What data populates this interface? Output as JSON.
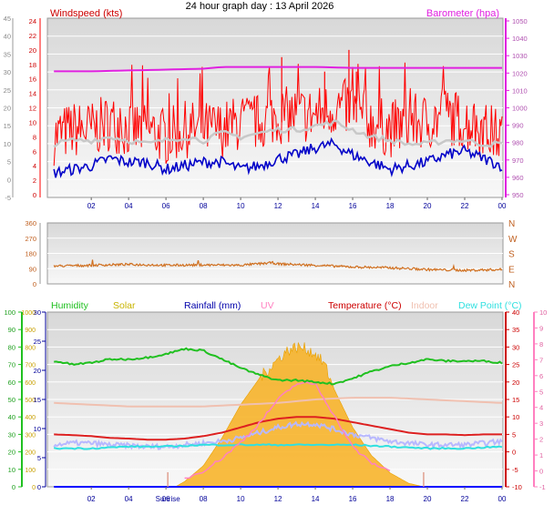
{
  "page": {
    "title": "24 hour graph day : 13 April 2026"
  },
  "colors": {
    "wind": "#ff0000",
    "gust_avg": "#c8c8c8",
    "wind_low": "#0000c8",
    "baro": "#e020e0",
    "dir": "#d07020",
    "humidity": "#20c020",
    "solar": "#f8b020",
    "rain": "#0000ff",
    "uv": "#ff80c0",
    "temperature": "#dd2020",
    "indoor": "#f0c0b0",
    "dewpoint": "#30e0e0",
    "apparent": "#b8b8ff",
    "panel_bg": "#e8e8e8",
    "grid": "#ffffff"
  },
  "chart_data": [
    {
      "type": "line",
      "title": "",
      "left_label": "Windspeed (kts)",
      "right_label": "Barometer (hpa)",
      "x_ticks": [
        "02",
        "04",
        "06",
        "08",
        "10",
        "12",
        "14",
        "16",
        "18",
        "20",
        "22",
        "00"
      ],
      "left_axis_outer": {
        "ticks": [
          "-5",
          "0",
          "5",
          "10",
          "15",
          "20",
          "25",
          "30",
          "35",
          "40",
          "45"
        ],
        "range": [
          -5,
          45
        ]
      },
      "left_axis_inner": {
        "ticks": [
          "0",
          "2",
          "4",
          "6",
          "8",
          "10",
          "12",
          "14",
          "16",
          "18",
          "20",
          "22",
          "24"
        ],
        "range": [
          0,
          24
        ]
      },
      "right_axis": {
        "ticks": [
          "950",
          "960",
          "970",
          "980",
          "990",
          "1000",
          "1010",
          "1020",
          "1030",
          "1040",
          "1050"
        ],
        "range": [
          950,
          1050
        ]
      },
      "x_range_hours": [
        0,
        24
      ],
      "series": [
        {
          "name": "",
          "role": "gust",
          "hours": [
            0,
            1,
            2,
            3,
            4,
            5,
            6,
            7,
            8,
            9,
            10,
            11,
            12,
            13,
            14,
            15,
            16,
            17,
            18,
            19,
            20,
            21,
            22,
            23,
            24
          ],
          "values": [
            8,
            9,
            9,
            10,
            9,
            9,
            8,
            9,
            9,
            9,
            10,
            10,
            11,
            11,
            11,
            12,
            12,
            10,
            9,
            10,
            10,
            11,
            10,
            9,
            8
          ]
        },
        {
          "name": "",
          "role": "gust_peak",
          "hours": [
            12.2,
            15.8,
            14.5,
            16.2
          ],
          "values": [
            19,
            20,
            17,
            17
          ]
        },
        {
          "name": "",
          "role": "average",
          "hours": [
            0,
            1,
            2,
            3,
            4,
            5,
            6,
            7,
            8,
            9,
            10,
            11,
            12,
            13,
            14,
            15,
            16,
            17,
            18,
            19,
            20,
            21,
            22,
            23,
            24
          ],
          "values": [
            7,
            7.5,
            7.5,
            8,
            7.5,
            7,
            7.5,
            8,
            7.5,
            8.5,
            8,
            8.5,
            9,
            9,
            9.5,
            10,
            9,
            8,
            7.5,
            7,
            7,
            7.5,
            7.5,
            7,
            7
          ]
        },
        {
          "name": "",
          "role": "low",
          "hours": [
            0,
            1,
            2,
            3,
            4,
            5,
            6,
            7,
            8,
            9,
            10,
            11,
            12,
            13,
            14,
            15,
            16,
            17,
            18,
            19,
            20,
            21,
            22,
            23,
            24
          ],
          "values": [
            3,
            3.5,
            4,
            5,
            4.5,
            4.5,
            3.5,
            4,
            4.5,
            4.5,
            3.5,
            4,
            5,
            5.5,
            6.5,
            7,
            5.5,
            4.5,
            3.5,
            4,
            4.5,
            5.5,
            6,
            5,
            4
          ]
        },
        {
          "name": "",
          "role": "pressure",
          "axis": "right",
          "hours": [
            0,
            2,
            4,
            6,
            8,
            9,
            10,
            12,
            14,
            16,
            18,
            20,
            22,
            24
          ],
          "values": [
            1021,
            1021,
            1021.5,
            1022,
            1022.5,
            1023.5,
            1023.5,
            1023.5,
            1023.5,
            1023,
            1023,
            1023,
            1023,
            1023
          ]
        }
      ]
    },
    {
      "type": "scatter",
      "title": "",
      "x_ticks": [],
      "left_axis": {
        "ticks": [
          "0",
          "90",
          "180",
          "270",
          "360"
        ],
        "range": [
          0,
          360
        ]
      },
      "right_axis": {
        "ticks": [
          "N",
          "E",
          "S",
          "W",
          "N"
        ]
      },
      "series": [
        {
          "name": "",
          "role": "direction",
          "hours": [
            0,
            2,
            4,
            6,
            8,
            10,
            11.7,
            12,
            14,
            16,
            18,
            20,
            22,
            24
          ],
          "values": [
            105,
            110,
            115,
            110,
            112,
            110,
            125,
            118,
            110,
            100,
            95,
            85,
            80,
            85
          ]
        }
      ]
    },
    {
      "type": "line",
      "title": "",
      "legend": [
        "Humidity",
        "Solar",
        "Rainfall (mm)",
        "UV",
        "Temperature (°C)",
        "Indoor",
        "Dew Point (°C)"
      ],
      "x_ticks": [
        "02",
        "04",
        "Sunrise",
        "06",
        "08",
        "10",
        "12",
        "14",
        "16",
        "18",
        "20",
        "22",
        "00"
      ],
      "axes": {
        "humidity": {
          "ticks": [
            "0",
            "10",
            "20",
            "30",
            "40",
            "50",
            "60",
            "70",
            "80",
            "90",
            "100"
          ],
          "range": [
            0,
            100
          ]
        },
        "solar": {
          "ticks": [
            "0",
            "100",
            "200",
            "300",
            "400",
            "500",
            "600",
            "700",
            "800",
            "900",
            "1000"
          ],
          "range": [
            0,
            1000
          ]
        },
        "rain": {
          "ticks": [
            "0",
            "5",
            "10",
            "15",
            "20",
            "25",
            "30"
          ],
          "range": [
            0,
            30
          ]
        },
        "temperature": {
          "ticks": [
            "-10",
            "-5",
            "0",
            "5",
            "10",
            "15",
            "20",
            "25",
            "30",
            "35",
            "40"
          ],
          "range": [
            -10,
            40
          ]
        },
        "uv": {
          "ticks": [
            "-1",
            "0",
            "1",
            "2",
            "3",
            "4",
            "5",
            "6",
            "7",
            "8",
            "9",
            "10"
          ],
          "range": [
            -1,
            10
          ]
        }
      },
      "sunrise_hour": 6.1,
      "series": [
        {
          "name": "Humidity",
          "axis": "humidity",
          "hours": [
            0,
            1,
            2,
            3,
            4,
            5,
            6,
            7,
            8,
            9,
            10,
            11,
            12,
            13,
            14,
            15,
            16,
            17,
            18,
            19,
            20,
            21,
            22,
            23,
            24
          ],
          "values": [
            72,
            70,
            71,
            73,
            73,
            74,
            76,
            79,
            78,
            73,
            68,
            64,
            61,
            61,
            60,
            59,
            62,
            66,
            69,
            71,
            73,
            72,
            72,
            72,
            71
          ]
        },
        {
          "name": "Solar",
          "axis": "solar",
          "hours": [
            6.5,
            7,
            8,
            9,
            10,
            11,
            12,
            12.5,
            13,
            13.5,
            14,
            14.5,
            15,
            16,
            17,
            18,
            19,
            19.8
          ],
          "values": [
            0,
            30,
            120,
            280,
            470,
            620,
            730,
            780,
            800,
            790,
            760,
            700,
            560,
            340,
            180,
            80,
            20,
            0
          ]
        },
        {
          "name": "Rainfall (mm)",
          "axis": "rain",
          "hours": [
            0,
            24
          ],
          "values": [
            0,
            0
          ]
        },
        {
          "name": "UV",
          "axis": "uv",
          "hours": [
            7,
            8,
            9,
            10,
            11,
            12,
            13,
            14,
            15,
            16,
            17,
            18
          ],
          "values": [
            -0.5,
            0,
            0.8,
            1.8,
            3,
            4.5,
            5.5,
            5.5,
            3.5,
            1.5,
            0.5,
            0
          ]
        },
        {
          "name": "Temperature (°C)",
          "axis": "temperature",
          "hours": [
            0,
            1,
            2,
            3,
            4,
            5,
            6,
            7,
            8,
            9,
            10,
            11,
            12,
            13,
            14,
            15,
            16,
            17,
            18,
            19,
            20,
            21,
            22,
            23,
            24
          ],
          "values": [
            5,
            4.8,
            4.5,
            4,
            3.8,
            3.5,
            3.5,
            3.8,
            4.5,
            5.5,
            7,
            8.5,
            9.5,
            10,
            10,
            9.5,
            8.5,
            7.5,
            6.5,
            5.5,
            5,
            5,
            4.8,
            5,
            5
          ]
        },
        {
          "name": "Indoor",
          "axis": "temperature",
          "hours": [
            0,
            2,
            4,
            6,
            8,
            10,
            12,
            14,
            16,
            18,
            20,
            22,
            24
          ],
          "values": [
            14,
            13.5,
            13,
            13,
            13,
            13.5,
            14,
            15,
            15.5,
            15.5,
            15,
            14.5,
            14
          ]
        },
        {
          "name": "Dew Point (°C)",
          "axis": "temperature",
          "hours": [
            0,
            2,
            4,
            6,
            8,
            10,
            12,
            14,
            16,
            18,
            20,
            22,
            24
          ],
          "values": [
            1,
            1,
            1.5,
            1.5,
            2,
            2,
            2,
            2,
            2,
            1.5,
            1,
            1,
            1.5
          ]
        },
        {
          "name": "",
          "role": "apparent",
          "axis": "temperature",
          "hours": [
            0,
            1,
            2,
            3,
            4,
            5,
            6,
            7,
            8,
            9,
            10,
            11,
            12,
            13,
            14,
            15,
            16,
            17,
            18,
            19,
            20,
            21,
            22,
            23,
            24
          ],
          "values": [
            2,
            2.5,
            2.5,
            2,
            1.8,
            1.5,
            1.5,
            2,
            2.5,
            3,
            4,
            5.5,
            7,
            8,
            8,
            6.5,
            5,
            4,
            3,
            2.5,
            2,
            2,
            2,
            2.5,
            3
          ]
        }
      ]
    }
  ]
}
